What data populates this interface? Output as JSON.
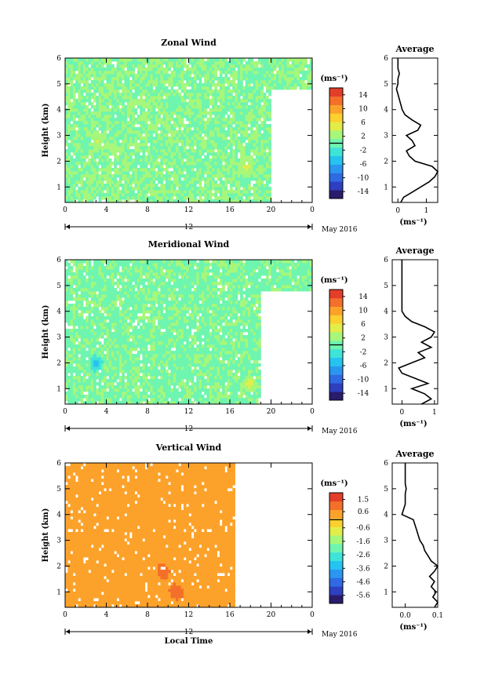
{
  "chart_data": [
    {
      "type": "heatmap",
      "title": "Zonal Wind",
      "xlabel": "",
      "ylabel": "Height (km)",
      "x_ticks": [
        "0",
        "4",
        "8",
        "12",
        "16",
        "20",
        "0"
      ],
      "y_ticks": [
        "1",
        "2",
        "3",
        "4",
        "5",
        "6"
      ],
      "xlim": [
        0,
        24
      ],
      "ylim": [
        0.4,
        6
      ],
      "date_label": "12",
      "month_label": "May 2016",
      "colorbar": {
        "unit": "(ms⁻¹)",
        "ticks": [
          "14",
          "10",
          "6",
          "2",
          "-2",
          "-6",
          "-10",
          "-14"
        ],
        "range": [
          -16,
          16
        ],
        "threshold": 0
      },
      "field": {
        "base_value": 1.2,
        "valid_until_hour": 20,
        "late_valid_above_km": 4.8,
        "noise": 2.5,
        "highlights": [
          {
            "hour": 3.2,
            "km": 2.8,
            "value": 4
          },
          {
            "hour": 17.5,
            "km": 1.8,
            "value": 5
          },
          {
            "hour": 21.0,
            "km": 2.9,
            "value": 6
          }
        ]
      },
      "profile": {
        "title": "Average",
        "xlabel": "(ms⁻¹)",
        "x_ticks": [
          "0",
          "1"
        ],
        "xlim": [
          -0.2,
          1.4
        ],
        "ylim": [
          0.4,
          6
        ],
        "y_ticks": [
          "1",
          "2",
          "3",
          "4",
          "5",
          "6"
        ],
        "heights": [
          0.4,
          0.6,
          0.8,
          1.0,
          1.2,
          1.4,
          1.6,
          1.8,
          2.0,
          2.2,
          2.4,
          2.6,
          2.8,
          3.0,
          3.2,
          3.4,
          3.6,
          3.8,
          4.0,
          4.2,
          4.4,
          4.6,
          4.8,
          5.0,
          5.2,
          5.4,
          5.6,
          5.8,
          6.0
        ],
        "values": [
          0.1,
          0.2,
          0.5,
          0.8,
          1.1,
          1.3,
          1.4,
          1.2,
          0.6,
          0.4,
          0.3,
          0.6,
          0.5,
          0.3,
          0.7,
          0.8,
          0.5,
          0.25,
          0.15,
          0.1,
          0.05,
          0.0,
          -0.05,
          0.0,
          0.0,
          0.05,
          0.0,
          0.0,
          0.0
        ]
      }
    },
    {
      "type": "heatmap",
      "title": "Meridional Wind",
      "xlabel": "",
      "ylabel": "Height (km)",
      "x_ticks": [
        "0",
        "4",
        "8",
        "12",
        "16",
        "20",
        "0"
      ],
      "y_ticks": [
        "1",
        "2",
        "3",
        "4",
        "5",
        "6"
      ],
      "xlim": [
        0,
        24
      ],
      "ylim": [
        0.4,
        6
      ],
      "date_label": "12",
      "month_label": "May 2016",
      "colorbar": {
        "unit": "(ms⁻¹)",
        "ticks": [
          "14",
          "10",
          "6",
          "2",
          "-2",
          "-6",
          "-10",
          "-14"
        ],
        "range": [
          -16,
          16
        ],
        "threshold": 0
      },
      "field": {
        "base_value": 0.8,
        "valid_until_hour": 19,
        "late_valid_above_km": 4.8,
        "noise": 2.5,
        "highlights": [
          {
            "hour": 20.5,
            "km": 3.2,
            "value": 8
          },
          {
            "hour": 20.0,
            "km": 2.3,
            "value": 10
          },
          {
            "hour": 18.0,
            "km": 1.2,
            "value": 5
          },
          {
            "hour": 3.0,
            "km": 2.0,
            "value": -5
          }
        ]
      },
      "profile": {
        "title": "Average",
        "xlabel": "(ms⁻¹)",
        "x_ticks": [
          "0",
          "1"
        ],
        "xlim": [
          -0.3,
          1.1
        ],
        "ylim": [
          0.4,
          6
        ],
        "y_ticks": [
          "1",
          "2",
          "3",
          "4",
          "5",
          "6"
        ],
        "heights": [
          0.4,
          0.6,
          0.8,
          1.0,
          1.2,
          1.4,
          1.6,
          1.8,
          2.0,
          2.2,
          2.4,
          2.6,
          2.8,
          3.0,
          3.2,
          3.4,
          3.6,
          3.8,
          4.0,
          4.2,
          4.4,
          4.6,
          4.8,
          5.0,
          5.2,
          5.4,
          5.6,
          5.8,
          6.0
        ],
        "values": [
          0.6,
          0.9,
          0.7,
          0.3,
          0.8,
          0.4,
          0.0,
          -0.1,
          0.3,
          0.7,
          0.5,
          0.9,
          0.6,
          0.9,
          1.0,
          0.7,
          0.3,
          0.1,
          0.0,
          0.0,
          0.0,
          0.0,
          0.0,
          0.0,
          0.0,
          0.0,
          0.0,
          0.0,
          0.0
        ]
      }
    },
    {
      "type": "heatmap",
      "title": "Vertical Wind",
      "xlabel": "Local Time",
      "ylabel": "Height (km)",
      "x_ticks": [
        "0",
        "4",
        "8",
        "12",
        "16",
        "20",
        "0"
      ],
      "y_ticks": [
        "1",
        "2",
        "3",
        "4",
        "5",
        "6"
      ],
      "xlim": [
        0,
        24
      ],
      "ylim": [
        0.4,
        6
      ],
      "date_label": "12",
      "month_label": "May 2016",
      "colorbar": {
        "unit": "(ms⁻¹)",
        "ticks": [
          "1.5",
          "0.6",
          "-0.6",
          "-1.6",
          "-2.6",
          "-3.6",
          "-4.6",
          "-5.6"
        ],
        "range": [
          -6.2,
          2.0
        ],
        "threshold": 0
      },
      "field": {
        "base_value": 0.55,
        "valid_until_hour": 16.5,
        "late_valid_above_km": 6.5,
        "noise": 0.25,
        "highlights": [
          {
            "hour": 9.5,
            "km": 1.8,
            "value": 1.2
          },
          {
            "hour": 10.8,
            "km": 1.0,
            "value": 1.3
          },
          {
            "hour": 19.8,
            "km": 2.5,
            "value": 1.4
          }
        ]
      },
      "profile": {
        "title": "Average",
        "xlabel": "(ms⁻¹)",
        "x_ticks": [
          "0.0",
          "0.1"
        ],
        "xlim": [
          -0.04,
          0.1
        ],
        "ylim": [
          0.4,
          6
        ],
        "y_ticks": [
          "1",
          "2",
          "3",
          "4",
          "5",
          "6"
        ],
        "heights": [
          0.4,
          0.6,
          0.8,
          1.0,
          1.2,
          1.4,
          1.6,
          1.8,
          2.0,
          2.2,
          2.4,
          2.6,
          2.8,
          3.0,
          3.2,
          3.4,
          3.6,
          3.8,
          4.0,
          4.2,
          4.4,
          4.6,
          4.8,
          5.0,
          5.2,
          5.4,
          5.6,
          5.8,
          6.0
        ],
        "values": [
          0.09,
          0.1,
          0.085,
          0.095,
          0.08,
          0.09,
          0.075,
          0.09,
          0.1,
          0.08,
          0.07,
          0.06,
          0.055,
          0.045,
          0.04,
          0.035,
          0.03,
          0.025,
          -0.01,
          -0.005,
          0.0,
          0.0,
          0.0,
          0.003,
          0.0,
          0.0,
          0.0,
          0.0,
          0.0
        ]
      }
    }
  ]
}
